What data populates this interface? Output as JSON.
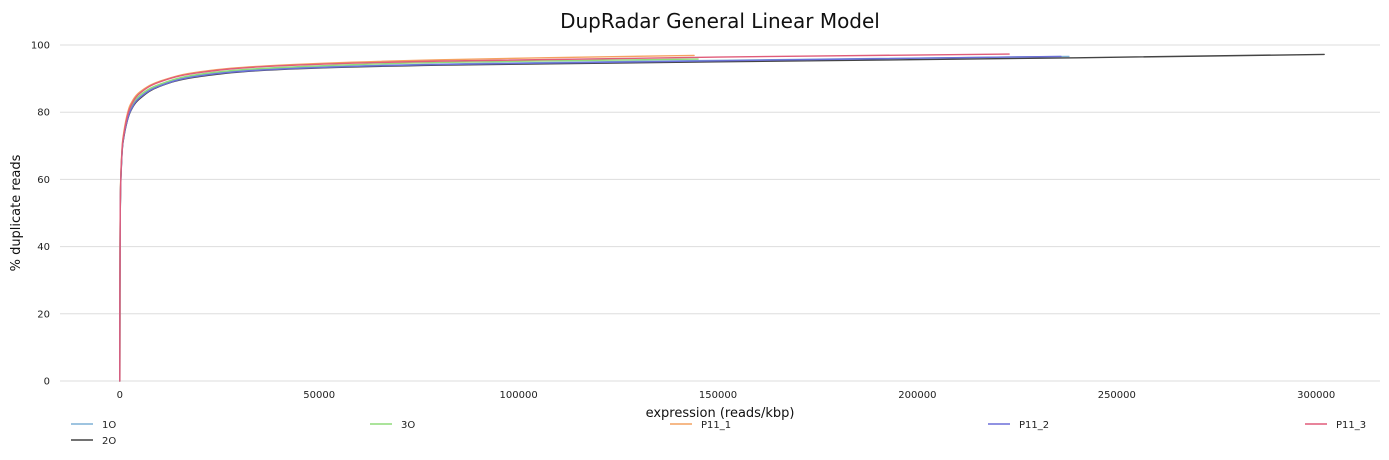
{
  "chart_data": {
    "type": "line",
    "title": "DupRadar General Linear Model",
    "xlabel": "expression (reads/kbp)",
    "ylabel": "% duplicate reads",
    "xlim": [
      -15000,
      316000
    ],
    "ylim": [
      0,
      100
    ],
    "xticks": [
      "0",
      "50000",
      "100000",
      "150000",
      "200000",
      "250000",
      "300000"
    ],
    "xtick_values": [
      0,
      50000,
      100000,
      150000,
      200000,
      250000,
      300000
    ],
    "yticks": [
      "0",
      "20",
      "40",
      "60",
      "80",
      "100"
    ],
    "ytick_values": [
      0,
      20,
      40,
      60,
      80,
      100
    ],
    "grid": "horizontal",
    "legend_position": "bottom",
    "series": [
      {
        "name": "1O",
        "color": "#7eb0d5",
        "x": [
          0,
          100,
          500,
          1000,
          2000,
          3000,
          5000,
          10000,
          20000,
          40000,
          80000,
          140000,
          238000
        ],
        "y": [
          0,
          50,
          67,
          73,
          78.5,
          81.5,
          84.5,
          88,
          91,
          93,
          94.3,
          95.3,
          96.6
        ]
      },
      {
        "name": "2O",
        "color": "#444444",
        "x": [
          0,
          100,
          500,
          1000,
          2000,
          3000,
          5000,
          10000,
          20000,
          40000,
          80000,
          150000,
          240000,
          302000
        ],
        "y": [
          0,
          49,
          66.5,
          72.5,
          78,
          81,
          84,
          87.7,
          90.6,
          92.7,
          94,
          95,
          96.2,
          97.2
        ]
      },
      {
        "name": "3O",
        "color": "#8fdc7a",
        "x": [
          0,
          100,
          500,
          1000,
          2000,
          3000,
          5000,
          10000,
          20000,
          40000,
          80000,
          145000
        ],
        "y": [
          0,
          50.5,
          67.5,
          73.5,
          79,
          82,
          85,
          88.3,
          91.3,
          93.3,
          94.8,
          95.8
        ]
      },
      {
        "name": "P11_1",
        "color": "#f4a261",
        "x": [
          0,
          100,
          500,
          1000,
          2000,
          3000,
          5000,
          10000,
          20000,
          40000,
          80000,
          144000
        ],
        "y": [
          0,
          51,
          68,
          74,
          80,
          83,
          86,
          89.2,
          92,
          94,
          95.6,
          96.9
        ]
      },
      {
        "name": "P11_2",
        "color": "#6c6fd8",
        "x": [
          0,
          100,
          500,
          1000,
          2000,
          3000,
          5000,
          10000,
          20000,
          40000,
          80000,
          150000,
          236000
        ],
        "y": [
          0,
          49.5,
          66.8,
          72.8,
          78.2,
          81.2,
          84.3,
          87.8,
          90.8,
          92.8,
          94.2,
          95.3,
          96.6
        ]
      },
      {
        "name": "P11_3",
        "color": "#e05c7a",
        "x": [
          0,
          100,
          500,
          1000,
          2000,
          3000,
          5000,
          10000,
          20000,
          40000,
          80000,
          150000,
          223000
        ],
        "y": [
          0,
          50.2,
          67.3,
          73.3,
          79.3,
          82.4,
          85.6,
          89,
          91.8,
          93.8,
          95.2,
          96.4,
          97.3
        ]
      }
    ]
  }
}
